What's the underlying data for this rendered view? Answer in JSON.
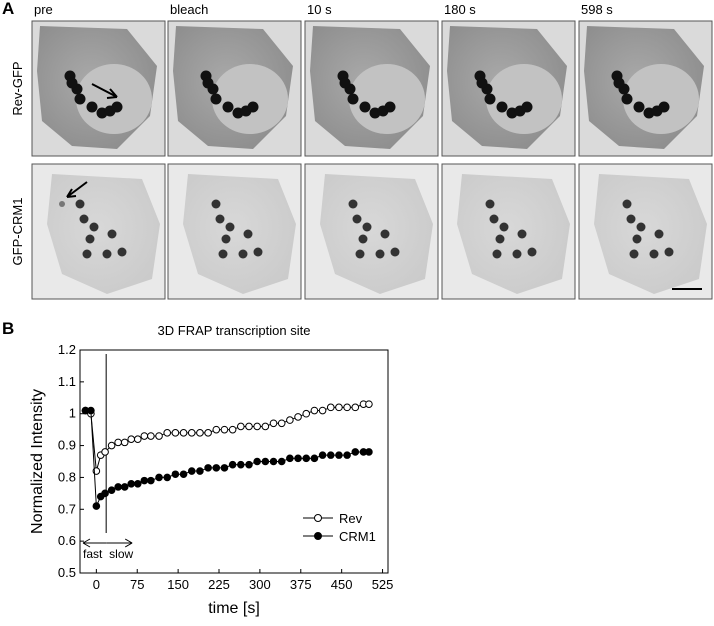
{
  "panel_a": {
    "label": "A",
    "columns": [
      "pre",
      "bleach",
      "10 s",
      "180 s",
      "598 s"
    ],
    "rows": [
      "Rev-GFP",
      "GFP-CRM1"
    ]
  },
  "panel_b": {
    "label": "B"
  },
  "chart_data": {
    "type": "line",
    "title": "3D FRAP transcription site",
    "x_label": "time [s]",
    "y_label": "Normalized Intensity",
    "x": [
      -20,
      -10,
      0,
      8,
      16,
      28,
      40,
      52,
      64,
      76,
      88,
      100,
      115,
      130,
      145,
      160,
      175,
      190,
      205,
      220,
      235,
      250,
      265,
      280,
      295,
      310,
      325,
      340,
      355,
      370,
      385,
      400,
      415,
      430,
      445,
      460,
      475,
      490,
      500
    ],
    "series": [
      {
        "name": "Rev",
        "color": "#000000",
        "filled": false,
        "values": [
          1.01,
          1.0,
          0.82,
          0.87,
          0.88,
          0.9,
          0.91,
          0.91,
          0.92,
          0.92,
          0.93,
          0.93,
          0.93,
          0.94,
          0.94,
          0.94,
          0.94,
          0.94,
          0.94,
          0.95,
          0.95,
          0.95,
          0.96,
          0.96,
          0.96,
          0.96,
          0.97,
          0.97,
          0.98,
          0.99,
          1.0,
          1.01,
          1.01,
          1.02,
          1.02,
          1.02,
          1.02,
          1.03,
          1.03
        ]
      },
      {
        "name": "CRM1",
        "color": "#000000",
        "filled": true,
        "values": [
          1.01,
          1.01,
          0.71,
          0.74,
          0.75,
          0.76,
          0.77,
          0.77,
          0.78,
          0.78,
          0.79,
          0.79,
          0.8,
          0.8,
          0.81,
          0.81,
          0.82,
          0.82,
          0.83,
          0.83,
          0.83,
          0.84,
          0.84,
          0.84,
          0.85,
          0.85,
          0.85,
          0.85,
          0.86,
          0.86,
          0.86,
          0.86,
          0.87,
          0.87,
          0.87,
          0.87,
          0.88,
          0.88,
          0.88
        ]
      }
    ],
    "xlim": [
      -30,
      535
    ],
    "xticks": [
      0,
      75,
      150,
      225,
      300,
      375,
      450,
      525
    ],
    "ylim": [
      0.5,
      1.2
    ],
    "yticks": [
      0.5,
      0.6,
      0.7,
      0.8,
      0.9,
      1.0,
      1.1,
      1.2
    ],
    "divider_x": 18,
    "fast_label": "fast",
    "slow_label": "slow",
    "legend": "lower right"
  }
}
